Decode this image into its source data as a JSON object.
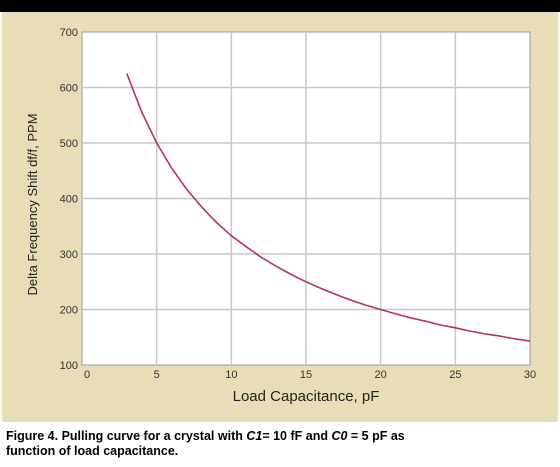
{
  "chart_data": {
    "type": "line",
    "title": "",
    "xlabel": "Load Capacitance, pF",
    "ylabel": "Delta Frequency Shift df/f, PPM",
    "xlim": [
      0,
      30
    ],
    "ylim": [
      100,
      700
    ],
    "x_ticks": [
      0,
      5,
      10,
      15,
      20,
      25,
      30
    ],
    "y_ticks": [
      100,
      200,
      300,
      400,
      500,
      600,
      700
    ],
    "grid": true,
    "legend": "none",
    "series": [
      {
        "color": "#b03a55",
        "x": [
          3,
          4,
          5,
          6,
          7,
          8,
          9,
          10,
          11,
          12,
          13,
          14,
          15,
          16,
          17,
          18,
          19,
          20,
          21,
          22,
          23,
          24,
          25,
          26,
          27,
          28,
          29,
          30
        ],
        "y": [
          625,
          556,
          500,
          455,
          417,
          385,
          357,
          333,
          313,
          294,
          278,
          263,
          250,
          238,
          227,
          217,
          208,
          200,
          192,
          185,
          179,
          172,
          167,
          161,
          156,
          152,
          147,
          143
        ]
      }
    ]
  },
  "caption": {
    "lead": "Figure 4. Pulling curve for a crystal with ",
    "c1_symbol": "C1",
    "c1_text": "= 10 fF and ",
    "c0_symbol": "C0",
    "c0_text": " = 5 pF as",
    "line2": "function of load capacitance."
  },
  "colors": {
    "panel_background": "#e9ddb7",
    "plot_background": "#ffffff",
    "grid": "#c8c8c8",
    "curve": "#b03a55"
  }
}
